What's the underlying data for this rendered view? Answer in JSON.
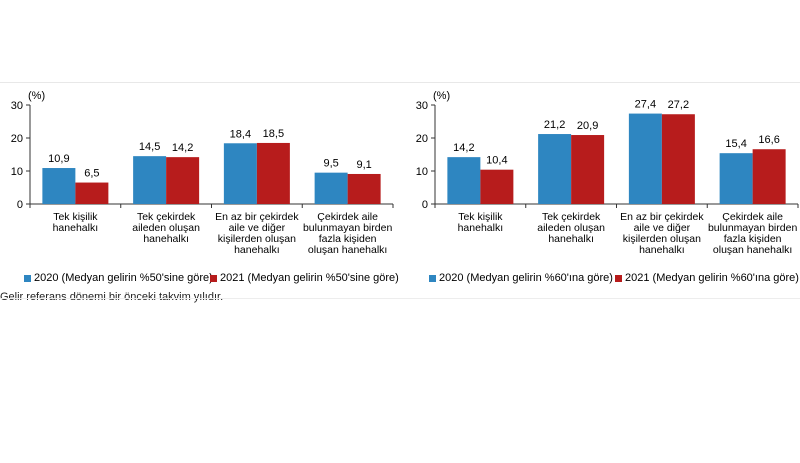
{
  "colors": {
    "series_2020": "#2e86c1",
    "series_2021": "#b71c1c",
    "axis": "#333333"
  },
  "footnote": "Gelir referans dönemi bir önceki takvim yılıdır.",
  "chart_data": [
    {
      "type": "bar",
      "unit_label": "(%)",
      "ylim": [
        0,
        30
      ],
      "yticks": [
        0,
        10,
        20,
        30
      ],
      "categories": [
        [
          "Tek kişilik",
          "hanehalkı"
        ],
        [
          "Tek çekirdek",
          "aileden oluşan",
          "hanehalkı"
        ],
        [
          "En az bir çekirdek",
          "aile ve diğer",
          "kişilerden oluşan",
          "hanehalkı"
        ],
        [
          "Çekirdek aile",
          "bulunmayan birden",
          "fazla kişiden",
          "oluşan hanehalkı"
        ]
      ],
      "series": [
        {
          "name": "2020 (Medyan gelirin %50'sine göre)",
          "values": [
            10.9,
            14.5,
            18.4,
            9.5
          ],
          "labels": [
            "10,9",
            "14,5",
            "18,4",
            "9,5"
          ]
        },
        {
          "name": "2021 (Medyan gelirin %50'sine göre)",
          "values": [
            6.5,
            14.2,
            18.5,
            9.1
          ],
          "labels": [
            "6,5",
            "14,2",
            "18,5",
            "9,1"
          ]
        }
      ],
      "legend": "bottom",
      "grid": false
    },
    {
      "type": "bar",
      "unit_label": "(%)",
      "ylim": [
        0,
        30
      ],
      "yticks": [
        0,
        10,
        20,
        30
      ],
      "categories": [
        [
          "Tek kişilik",
          "hanehalkı"
        ],
        [
          "Tek çekirdek",
          "aileden oluşan",
          "hanehalkı"
        ],
        [
          "En az bir çekirdek",
          "aile ve diğer",
          "kişilerden oluşan",
          "hanehalkı"
        ],
        [
          "Çekirdek aile",
          "bulunmayan birden",
          "fazla kişiden",
          "oluşan hanehalkı"
        ]
      ],
      "series": [
        {
          "name": "2020 (Medyan gelirin %60'ına göre)",
          "values": [
            14.2,
            21.2,
            27.4,
            15.4
          ],
          "labels": [
            "14,2",
            "21,2",
            "27,4",
            "15,4"
          ]
        },
        {
          "name": "2021 (Medyan gelirin %60'ına göre)",
          "values": [
            10.4,
            20.9,
            27.2,
            16.6
          ],
          "labels": [
            "10,4",
            "20,9",
            "27,2",
            "16,6"
          ]
        }
      ],
      "legend": "bottom",
      "grid": false
    }
  ]
}
